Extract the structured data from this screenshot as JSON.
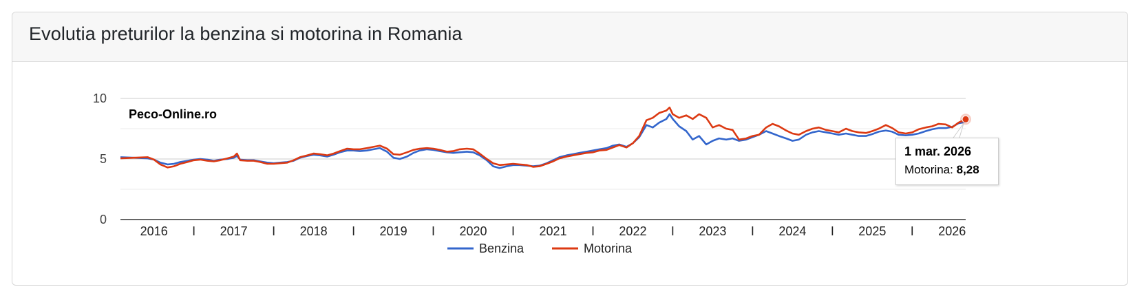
{
  "panel": {
    "title": "Evolutia preturilor la benzina si motorina in Romania"
  },
  "chart_data": {
    "type": "line",
    "watermark": "Peco-Online.ro",
    "xlim": [
      2015.58,
      2026.17
    ],
    "ylim": [
      0,
      10
    ],
    "y_ticks": [
      "0",
      "5",
      "10"
    ],
    "x_ticks": [
      {
        "label": "2016",
        "x": 2016.0
      },
      {
        "label": "I",
        "x": 2016.5
      },
      {
        "label": "2017",
        "x": 2017.0
      },
      {
        "label": "I",
        "x": 2017.5
      },
      {
        "label": "2018",
        "x": 2018.0
      },
      {
        "label": "I",
        "x": 2018.5
      },
      {
        "label": "2019",
        "x": 2019.0
      },
      {
        "label": "I",
        "x": 2019.5
      },
      {
        "label": "2020",
        "x": 2020.0
      },
      {
        "label": "I",
        "x": 2020.5
      },
      {
        "label": "2021",
        "x": 2021.0
      },
      {
        "label": "I",
        "x": 2021.5
      },
      {
        "label": "2022",
        "x": 2022.0
      },
      {
        "label": "I",
        "x": 2022.5
      },
      {
        "label": "2023",
        "x": 2023.0
      },
      {
        "label": "I",
        "x": 2023.5
      },
      {
        "label": "2024",
        "x": 2024.0
      },
      {
        "label": "I",
        "x": 2024.5
      },
      {
        "label": "2025",
        "x": 2025.0
      },
      {
        "label": "I",
        "x": 2025.5
      },
      {
        "label": "2026",
        "x": 2026.0
      }
    ],
    "grid": true,
    "legend_position": "bottom",
    "series": [
      {
        "name": "Benzina",
        "color": "#3366cc",
        "points": [
          [
            2015.58,
            5.15
          ],
          [
            2015.75,
            5.1
          ],
          [
            2015.92,
            5.05
          ],
          [
            2016.0,
            4.95
          ],
          [
            2016.08,
            4.7
          ],
          [
            2016.17,
            4.55
          ],
          [
            2016.25,
            4.6
          ],
          [
            2016.33,
            4.75
          ],
          [
            2016.42,
            4.85
          ],
          [
            2016.5,
            4.95
          ],
          [
            2016.58,
            5.0
          ],
          [
            2016.67,
            4.95
          ],
          [
            2016.75,
            4.85
          ],
          [
            2016.83,
            4.95
          ],
          [
            2016.92,
            5.0
          ],
          [
            2017.0,
            5.1
          ],
          [
            2017.04,
            5.25
          ],
          [
            2017.08,
            4.95
          ],
          [
            2017.17,
            4.9
          ],
          [
            2017.25,
            4.9
          ],
          [
            2017.33,
            4.8
          ],
          [
            2017.42,
            4.7
          ],
          [
            2017.5,
            4.65
          ],
          [
            2017.58,
            4.7
          ],
          [
            2017.67,
            4.75
          ],
          [
            2017.75,
            4.85
          ],
          [
            2017.83,
            5.1
          ],
          [
            2017.92,
            5.25
          ],
          [
            2018.0,
            5.35
          ],
          [
            2018.08,
            5.3
          ],
          [
            2018.17,
            5.2
          ],
          [
            2018.25,
            5.35
          ],
          [
            2018.33,
            5.55
          ],
          [
            2018.42,
            5.7
          ],
          [
            2018.5,
            5.7
          ],
          [
            2018.58,
            5.65
          ],
          [
            2018.67,
            5.7
          ],
          [
            2018.75,
            5.8
          ],
          [
            2018.83,
            5.9
          ],
          [
            2018.92,
            5.6
          ],
          [
            2019.0,
            5.1
          ],
          [
            2019.08,
            5.0
          ],
          [
            2019.17,
            5.2
          ],
          [
            2019.25,
            5.5
          ],
          [
            2019.33,
            5.7
          ],
          [
            2019.42,
            5.8
          ],
          [
            2019.5,
            5.75
          ],
          [
            2019.58,
            5.65
          ],
          [
            2019.67,
            5.55
          ],
          [
            2019.75,
            5.5
          ],
          [
            2019.83,
            5.55
          ],
          [
            2019.92,
            5.6
          ],
          [
            2020.0,
            5.55
          ],
          [
            2020.08,
            5.3
          ],
          [
            2020.17,
            4.9
          ],
          [
            2020.25,
            4.4
          ],
          [
            2020.33,
            4.25
          ],
          [
            2020.42,
            4.4
          ],
          [
            2020.5,
            4.5
          ],
          [
            2020.58,
            4.5
          ],
          [
            2020.67,
            4.45
          ],
          [
            2020.75,
            4.4
          ],
          [
            2020.83,
            4.45
          ],
          [
            2020.92,
            4.65
          ],
          [
            2021.0,
            4.9
          ],
          [
            2021.08,
            5.15
          ],
          [
            2021.17,
            5.3
          ],
          [
            2021.25,
            5.4
          ],
          [
            2021.33,
            5.5
          ],
          [
            2021.42,
            5.6
          ],
          [
            2021.5,
            5.7
          ],
          [
            2021.58,
            5.8
          ],
          [
            2021.67,
            5.9
          ],
          [
            2021.75,
            6.1
          ],
          [
            2021.83,
            6.2
          ],
          [
            2021.92,
            6.0
          ],
          [
            2022.0,
            6.3
          ],
          [
            2022.08,
            6.8
          ],
          [
            2022.17,
            7.8
          ],
          [
            2022.25,
            7.6
          ],
          [
            2022.33,
            8.0
          ],
          [
            2022.42,
            8.3
          ],
          [
            2022.46,
            8.7
          ],
          [
            2022.5,
            8.3
          ],
          [
            2022.58,
            7.7
          ],
          [
            2022.67,
            7.3
          ],
          [
            2022.75,
            6.6
          ],
          [
            2022.83,
            6.9
          ],
          [
            2022.92,
            6.2
          ],
          [
            2023.0,
            6.5
          ],
          [
            2023.08,
            6.7
          ],
          [
            2023.17,
            6.6
          ],
          [
            2023.25,
            6.7
          ],
          [
            2023.33,
            6.5
          ],
          [
            2023.42,
            6.6
          ],
          [
            2023.5,
            6.8
          ],
          [
            2023.58,
            7.0
          ],
          [
            2023.67,
            7.3
          ],
          [
            2023.75,
            7.1
          ],
          [
            2023.83,
            6.9
          ],
          [
            2023.92,
            6.7
          ],
          [
            2024.0,
            6.5
          ],
          [
            2024.08,
            6.6
          ],
          [
            2024.17,
            7.0
          ],
          [
            2024.25,
            7.2
          ],
          [
            2024.33,
            7.3
          ],
          [
            2024.42,
            7.2
          ],
          [
            2024.5,
            7.1
          ],
          [
            2024.58,
            7.0
          ],
          [
            2024.67,
            7.1
          ],
          [
            2024.75,
            7.0
          ],
          [
            2024.83,
            6.9
          ],
          [
            2024.92,
            6.9
          ],
          [
            2025.0,
            7.05
          ],
          [
            2025.08,
            7.25
          ],
          [
            2025.17,
            7.35
          ],
          [
            2025.25,
            7.25
          ],
          [
            2025.33,
            7.0
          ],
          [
            2025.42,
            6.95
          ],
          [
            2025.5,
            7.0
          ],
          [
            2025.58,
            7.1
          ],
          [
            2025.67,
            7.3
          ],
          [
            2025.75,
            7.45
          ],
          [
            2025.83,
            7.55
          ],
          [
            2025.92,
            7.55
          ],
          [
            2026.0,
            7.65
          ],
          [
            2026.08,
            7.95
          ],
          [
            2026.17,
            8.05
          ]
        ]
      },
      {
        "name": "Motorina",
        "color": "#dc3912",
        "points": [
          [
            2015.58,
            5.05
          ],
          [
            2015.75,
            5.1
          ],
          [
            2015.92,
            5.15
          ],
          [
            2016.0,
            4.95
          ],
          [
            2016.08,
            4.55
          ],
          [
            2016.17,
            4.3
          ],
          [
            2016.25,
            4.4
          ],
          [
            2016.33,
            4.6
          ],
          [
            2016.42,
            4.75
          ],
          [
            2016.5,
            4.9
          ],
          [
            2016.58,
            4.95
          ],
          [
            2016.67,
            4.85
          ],
          [
            2016.75,
            4.8
          ],
          [
            2016.83,
            4.9
          ],
          [
            2016.92,
            5.05
          ],
          [
            2017.0,
            5.2
          ],
          [
            2017.04,
            5.45
          ],
          [
            2017.08,
            4.9
          ],
          [
            2017.17,
            4.85
          ],
          [
            2017.25,
            4.85
          ],
          [
            2017.33,
            4.75
          ],
          [
            2017.42,
            4.6
          ],
          [
            2017.5,
            4.6
          ],
          [
            2017.58,
            4.65
          ],
          [
            2017.67,
            4.7
          ],
          [
            2017.75,
            4.9
          ],
          [
            2017.83,
            5.15
          ],
          [
            2017.92,
            5.3
          ],
          [
            2018.0,
            5.45
          ],
          [
            2018.08,
            5.4
          ],
          [
            2018.17,
            5.3
          ],
          [
            2018.25,
            5.45
          ],
          [
            2018.33,
            5.65
          ],
          [
            2018.42,
            5.85
          ],
          [
            2018.5,
            5.8
          ],
          [
            2018.58,
            5.8
          ],
          [
            2018.67,
            5.9
          ],
          [
            2018.75,
            6.0
          ],
          [
            2018.83,
            6.1
          ],
          [
            2018.92,
            5.85
          ],
          [
            2019.0,
            5.4
          ],
          [
            2019.08,
            5.35
          ],
          [
            2019.17,
            5.55
          ],
          [
            2019.25,
            5.75
          ],
          [
            2019.33,
            5.85
          ],
          [
            2019.42,
            5.9
          ],
          [
            2019.5,
            5.85
          ],
          [
            2019.58,
            5.75
          ],
          [
            2019.67,
            5.6
          ],
          [
            2019.75,
            5.65
          ],
          [
            2019.83,
            5.8
          ],
          [
            2019.92,
            5.85
          ],
          [
            2020.0,
            5.8
          ],
          [
            2020.08,
            5.45
          ],
          [
            2020.17,
            5.0
          ],
          [
            2020.25,
            4.65
          ],
          [
            2020.33,
            4.5
          ],
          [
            2020.42,
            4.55
          ],
          [
            2020.5,
            4.6
          ],
          [
            2020.58,
            4.55
          ],
          [
            2020.67,
            4.5
          ],
          [
            2020.75,
            4.35
          ],
          [
            2020.83,
            4.4
          ],
          [
            2020.92,
            4.6
          ],
          [
            2021.0,
            4.8
          ],
          [
            2021.08,
            5.05
          ],
          [
            2021.17,
            5.2
          ],
          [
            2021.25,
            5.3
          ],
          [
            2021.33,
            5.4
          ],
          [
            2021.42,
            5.5
          ],
          [
            2021.5,
            5.55
          ],
          [
            2021.58,
            5.7
          ],
          [
            2021.67,
            5.75
          ],
          [
            2021.75,
            5.95
          ],
          [
            2021.83,
            6.15
          ],
          [
            2021.92,
            5.95
          ],
          [
            2022.0,
            6.3
          ],
          [
            2022.08,
            6.9
          ],
          [
            2022.17,
            8.2
          ],
          [
            2022.25,
            8.4
          ],
          [
            2022.33,
            8.8
          ],
          [
            2022.42,
            9.0
          ],
          [
            2022.46,
            9.25
          ],
          [
            2022.5,
            8.7
          ],
          [
            2022.58,
            8.4
          ],
          [
            2022.67,
            8.6
          ],
          [
            2022.75,
            8.3
          ],
          [
            2022.83,
            8.7
          ],
          [
            2022.92,
            8.4
          ],
          [
            2023.0,
            7.6
          ],
          [
            2023.08,
            7.8
          ],
          [
            2023.17,
            7.5
          ],
          [
            2023.25,
            7.4
          ],
          [
            2023.33,
            6.6
          ],
          [
            2023.42,
            6.7
          ],
          [
            2023.5,
            6.9
          ],
          [
            2023.58,
            7.0
          ],
          [
            2023.67,
            7.6
          ],
          [
            2023.75,
            7.9
          ],
          [
            2023.83,
            7.7
          ],
          [
            2023.92,
            7.35
          ],
          [
            2024.0,
            7.1
          ],
          [
            2024.08,
            7.0
          ],
          [
            2024.17,
            7.3
          ],
          [
            2024.25,
            7.5
          ],
          [
            2024.33,
            7.6
          ],
          [
            2024.42,
            7.4
          ],
          [
            2024.5,
            7.3
          ],
          [
            2024.58,
            7.2
          ],
          [
            2024.67,
            7.5
          ],
          [
            2024.75,
            7.3
          ],
          [
            2024.83,
            7.2
          ],
          [
            2024.92,
            7.15
          ],
          [
            2025.0,
            7.3
          ],
          [
            2025.08,
            7.5
          ],
          [
            2025.17,
            7.8
          ],
          [
            2025.25,
            7.55
          ],
          [
            2025.33,
            7.2
          ],
          [
            2025.42,
            7.1
          ],
          [
            2025.5,
            7.2
          ],
          [
            2025.58,
            7.45
          ],
          [
            2025.67,
            7.6
          ],
          [
            2025.75,
            7.7
          ],
          [
            2025.83,
            7.9
          ],
          [
            2025.92,
            7.85
          ],
          [
            2026.0,
            7.6
          ],
          [
            2026.08,
            8.0
          ],
          [
            2026.17,
            8.28
          ]
        ]
      }
    ],
    "tooltip": {
      "date": "1 mar. 2026",
      "series_label": "Motorina:",
      "value": "8,28",
      "x": 2026.17,
      "y": 8.28
    }
  }
}
